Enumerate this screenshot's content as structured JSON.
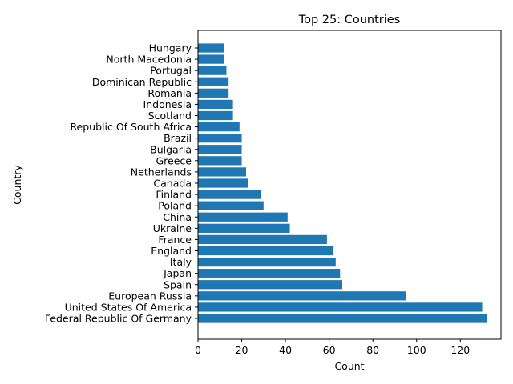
{
  "chart_data": {
    "type": "bar",
    "orientation": "horizontal",
    "title": "Top 25: Countries",
    "xlabel": "Count",
    "ylabel": "Country",
    "xlim": [
      0,
      138.6
    ],
    "xticks": [
      0,
      20,
      40,
      60,
      80,
      100,
      120
    ],
    "grid": false,
    "bar_color": "#1f77b4",
    "categories": [
      "Federal Republic Of Germany",
      "United States Of America",
      "European Russia",
      "Spain",
      "Japan",
      "Italy",
      "England",
      "France",
      "Ukraine",
      "China",
      "Poland",
      "Finland",
      "Canada",
      "Netherlands",
      "Greece",
      "Bulgaria",
      "Brazil",
      "Republic Of South Africa",
      "Scotland",
      "Indonesia",
      "Romania",
      "Dominican Republic",
      "Portugal",
      "North Macedonia",
      "Hungary"
    ],
    "values": [
      132,
      130,
      95,
      66,
      65,
      63,
      62,
      59,
      42,
      41,
      30,
      29,
      23,
      22,
      20,
      20,
      20,
      19,
      16,
      16,
      14,
      14,
      13,
      12,
      12
    ]
  }
}
